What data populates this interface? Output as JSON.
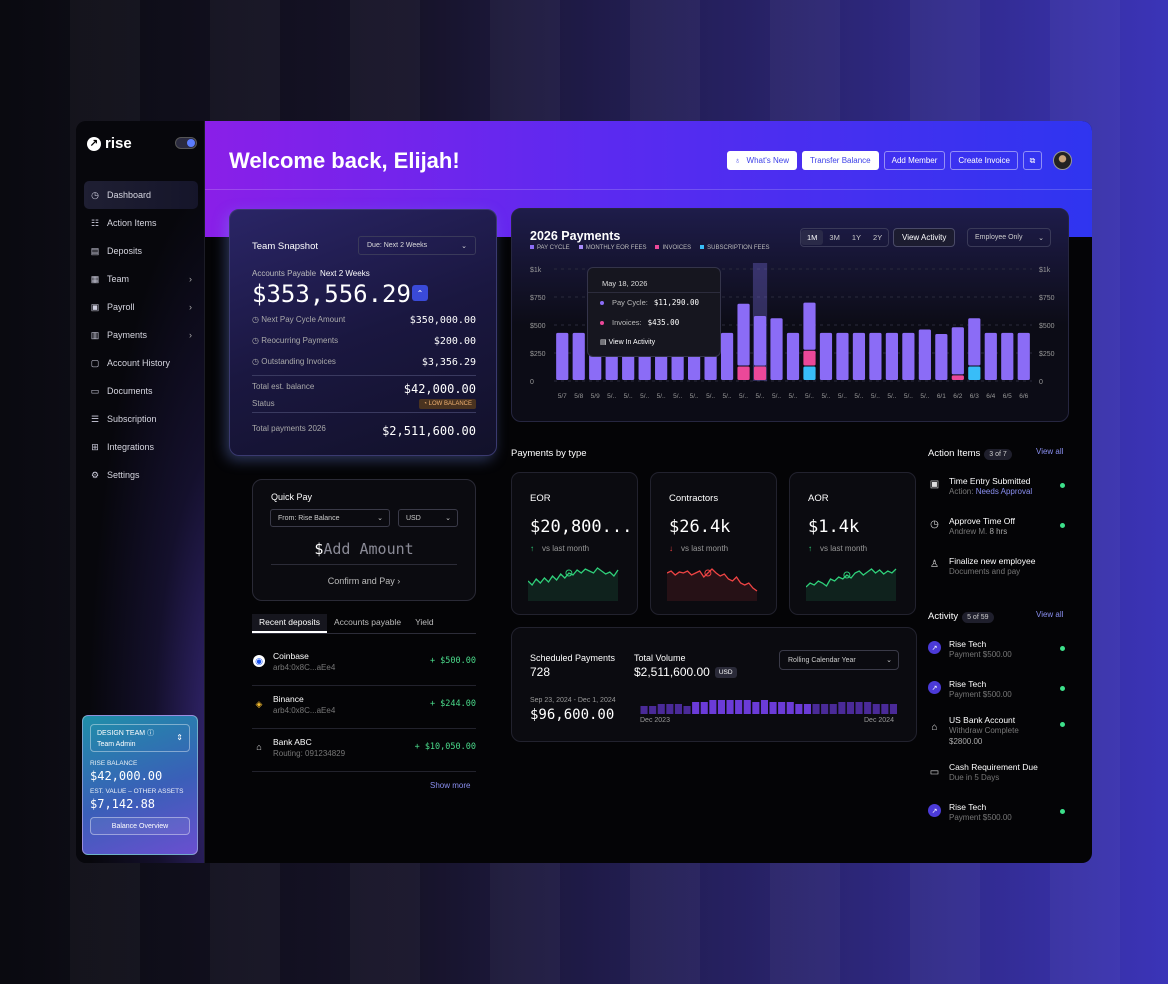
{
  "brand": {
    "name": "rise"
  },
  "sidebar": {
    "items": [
      {
        "label": "Dashboard",
        "icon": "dashboard-icon",
        "active": true
      },
      {
        "label": "Action Items",
        "icon": "checklist-icon"
      },
      {
        "label": "Deposits",
        "icon": "deposit-icon"
      },
      {
        "label": "Team",
        "icon": "team-icon",
        "chevron": true
      },
      {
        "label": "Payroll",
        "icon": "payroll-icon",
        "chevron": true
      },
      {
        "label": "Payments",
        "icon": "payments-icon",
        "chevron": true
      },
      {
        "label": "Account History",
        "icon": "history-icon"
      },
      {
        "label": "Documents",
        "icon": "documents-icon"
      },
      {
        "label": "Subscription",
        "icon": "subscription-icon"
      },
      {
        "label": "Integrations",
        "icon": "integrations-icon"
      },
      {
        "label": "Settings",
        "icon": "settings-icon"
      }
    ],
    "balance_card": {
      "team_label": "DESIGN TEAM",
      "role": "Team Admin",
      "rise_balance_label": "RISE BALANCE",
      "rise_balance": "$42,000.00",
      "other_assets_label": "EST. VALUE – OTHER ASSETS",
      "other_assets": "$7,142.88",
      "button": "Balance Overview"
    }
  },
  "header": {
    "welcome": "Welcome back, Elijah!",
    "whats_new": "What's New",
    "transfer": "Transfer Balance",
    "add_member": "Add Member",
    "create_invoice": "Create Invoice"
  },
  "snapshot": {
    "title": "Team Snapshot",
    "due_select": "Due:  Next 2 Weeks",
    "ap_label": "Accounts Payable",
    "ap_period": "Next 2 Weeks",
    "ap_value": "$353,556.29",
    "rows": [
      {
        "label": "Next Pay Cycle Amount",
        "value": "$350,000.00"
      },
      {
        "label": "Reocurring Payments",
        "value": "$200.00"
      },
      {
        "label": "Outstanding Invoices",
        "value": "$3,356.29"
      }
    ],
    "total_est_label": "Total est. balance",
    "total_est_value": "$42,000.00",
    "status_label": "Status",
    "status_badge": "LOW BALANCE",
    "total_payments_label": "Total payments 2026",
    "total_payments_value": "$2,511,600.00"
  },
  "quick_pay": {
    "title": "Quick Pay",
    "from_select": "From:  Rise Balance",
    "currency": "USD",
    "amount_placeholder": "Add Amount",
    "currency_symbol": "$",
    "confirm": "Confirm and Pay"
  },
  "deposit_tabs": [
    "Recent deposits",
    "Accounts payable",
    "Yield"
  ],
  "deposits": [
    {
      "name": "Coinbase",
      "sub": "arb4:0x8C...aEe4",
      "amount": "+ $500.00",
      "icon": "coinbase-icon"
    },
    {
      "name": "Binance",
      "sub": "arb4:0x8C...aEe4",
      "amount": "+ $244.00",
      "icon": "binance-icon"
    },
    {
      "name": "Bank ABC",
      "sub": "Routing: 091234829",
      "amount": "+ $10,050.00",
      "icon": "bank-icon"
    }
  ],
  "show_more": "Show more",
  "payments_chart": {
    "title": "2026 Payments",
    "legend": [
      {
        "label": "PAY CYCLE",
        "color": "#8b6cf6"
      },
      {
        "label": "MONTHLY EOR FEES",
        "color": "#a78bfa"
      },
      {
        "label": "INVOICES",
        "color": "#ec4899"
      },
      {
        "label": "SUBSCRIPTION FEES",
        "color": "#38bdf8"
      }
    ],
    "ranges": [
      "1M",
      "3M",
      "1Y",
      "2Y"
    ],
    "view_activity": "View Activity",
    "employee_select": "Employee Only",
    "tooltip": {
      "date": "May 18, 2026",
      "pay_cycle_label": "Pay Cycle:",
      "pay_cycle_value": "$11,290.00",
      "invoices_label": "Invoices:",
      "invoices_value": "$435.00",
      "view_link": "View In Activity"
    }
  },
  "chart_data": {
    "type": "bar",
    "title": "2026 Payments",
    "y_ticks": [
      "$1k",
      "$750",
      "$500",
      "$250",
      "0"
    ],
    "ylim": [
      0,
      1000
    ],
    "categories": [
      "5/7",
      "5/8",
      "5/9",
      "5/..",
      "5/..",
      "5/..",
      "5/..",
      "5/..",
      "5/..",
      "5/..",
      "5/..",
      "5/..",
      "5/..",
      "5/..",
      "5/..",
      "5/..",
      "5/..",
      "5/..",
      "5/..",
      "5/..",
      "5/..",
      "5/..",
      "5/..",
      "6/1",
      "6/2",
      "6/3",
      "6/4",
      "6/5",
      "6/6"
    ],
    "series": [
      {
        "name": "PAY CYCLE",
        "values": [
          430,
          430,
          430,
          430,
          430,
          430,
          430,
          430,
          430,
          430,
          430,
          560,
          450,
          560,
          430,
          430,
          430,
          430,
          430,
          430,
          430,
          430,
          460,
          420,
          430,
          430,
          430,
          430,
          430
        ]
      },
      {
        "name": "INVOICES",
        "values": [
          0,
          0,
          0,
          0,
          0,
          0,
          0,
          0,
          0,
          0,
          0,
          130,
          130,
          0,
          0,
          140,
          0,
          0,
          0,
          0,
          0,
          0,
          0,
          0,
          50,
          0,
          0,
          0,
          0
        ]
      },
      {
        "name": "SUBSCRIPTION FEES",
        "values": [
          0,
          0,
          0,
          0,
          0,
          0,
          0,
          0,
          0,
          0,
          0,
          0,
          0,
          0,
          0,
          130,
          0,
          0,
          0,
          0,
          0,
          0,
          0,
          0,
          0,
          130,
          0,
          0,
          0
        ]
      }
    ],
    "highlighted": "5/.."
  },
  "payments_by_type": {
    "title": "Payments by type",
    "cards": [
      {
        "title": "EOR",
        "value": "$20,800...",
        "change": "vs last month",
        "trend": "up",
        "color": "#2fd07a"
      },
      {
        "title": "Contractors",
        "value": "$26.4k",
        "change": "vs last month",
        "trend": "down",
        "color": "#ef4444"
      },
      {
        "title": "AOR",
        "value": "$1.4k",
        "change": "vs last month",
        "trend": "up",
        "color": "#2fd07a"
      }
    ]
  },
  "scheduled": {
    "label1": "Scheduled Payments",
    "value1": "728",
    "label2": "Total Volume",
    "value2": "$2,511,600.00",
    "badge": "USD",
    "select": "Rolling Calendar Year",
    "range": "Sep 23, 2024 - Dec 1, 2024",
    "value3": "$96,600.00",
    "mini_left": "Dec 2023",
    "mini_right": "Dec 2024",
    "mini_values": [
      0.4,
      0.4,
      0.5,
      0.5,
      0.5,
      0.4,
      0.6,
      0.6,
      0.7,
      0.7,
      0.7,
      0.7,
      0.7,
      0.6,
      0.7,
      0.6,
      0.6,
      0.6,
      0.5,
      0.5,
      0.5,
      0.5,
      0.5,
      0.6,
      0.6,
      0.6,
      0.6,
      0.5,
      0.5,
      0.5
    ]
  },
  "action_items": {
    "title": "Action Items",
    "count": "3 of 7",
    "view_all": "View all",
    "items": [
      {
        "title": "Time Entry Submitted",
        "sub_prefix": "Action:",
        "sub_value": "Needs Approval",
        "icon": "calendar-icon"
      },
      {
        "title": "Approve Time Off",
        "sub_prefix": "Andrew M.",
        "sub_value": "8 hrs",
        "icon": "clock-icon"
      },
      {
        "title": "Finalize new employee",
        "sub_prefix": "Documents and pay",
        "sub_value": "",
        "icon": "add-user-icon"
      }
    ]
  },
  "activity": {
    "title": "Activity",
    "count": "5 of 59",
    "view_all": "View all",
    "items": [
      {
        "title": "Rise Tech",
        "sub": "Payment $500.00",
        "icon": "rise-icon"
      },
      {
        "title": "Rise Tech",
        "sub": "Payment $500.00",
        "icon": "rise-icon"
      },
      {
        "title": "US Bank Account",
        "sub1": "Withdraw Complete",
        "sub2": "$2800.00",
        "icon": "bank-icon"
      },
      {
        "title": "Cash Requirement Due",
        "sub": "Due in 5 Days",
        "icon": "calendar-icon"
      },
      {
        "title": "Rise Tech",
        "sub": "Payment $500.00",
        "icon": "rise-icon"
      }
    ]
  }
}
